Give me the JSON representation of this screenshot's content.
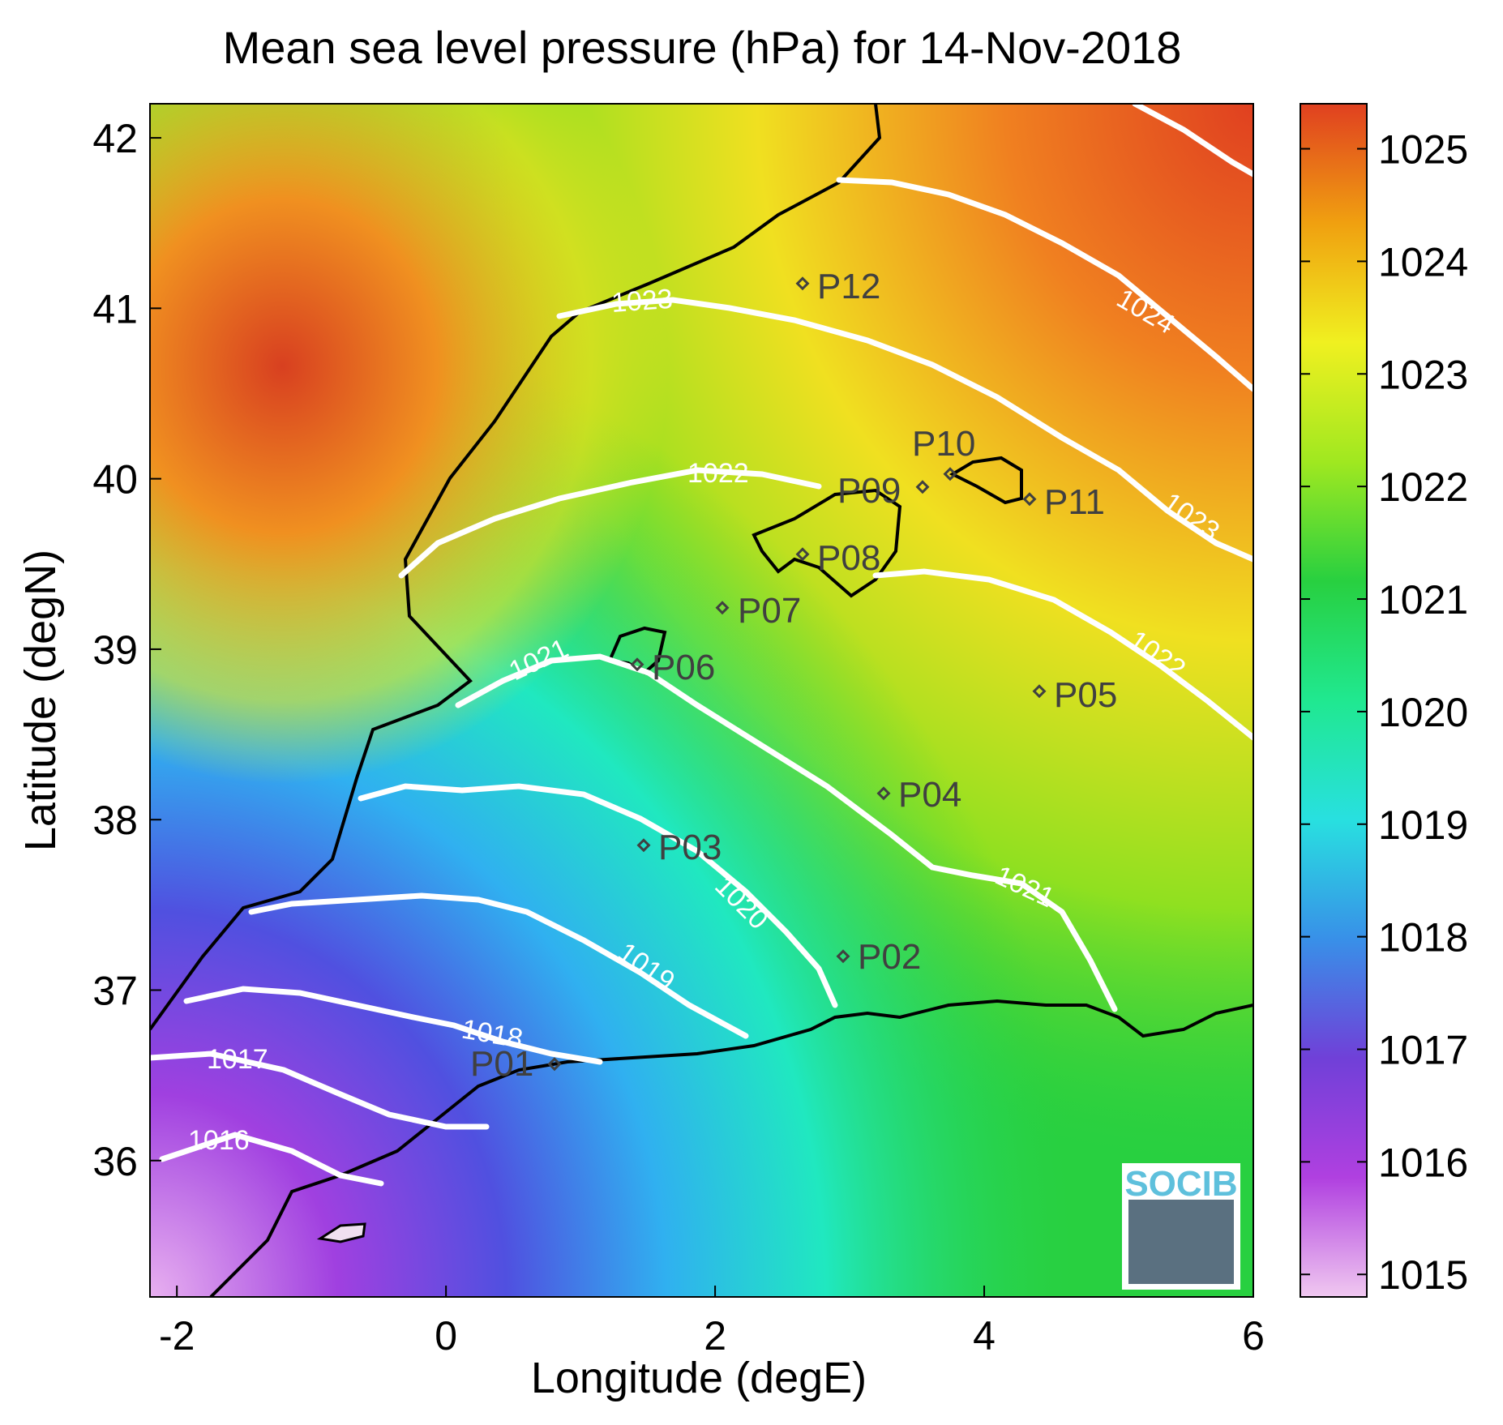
{
  "title": "Mean sea level pressure (hPa) for 14-Nov-2018",
  "xlabel": "Longitude (degE)",
  "ylabel": "Latitude (degN)",
  "x_ticks": [
    "-2",
    "0",
    "2",
    "4",
    "6"
  ],
  "y_ticks": [
    "36",
    "37",
    "38",
    "39",
    "40",
    "41",
    "42"
  ],
  "colorbar": {
    "ticks": [
      "1015",
      "1016",
      "1017",
      "1018",
      "1019",
      "1020",
      "1021",
      "1022",
      "1023",
      "1024",
      "1025"
    ],
    "stops": [
      "#f0c8f0",
      "#b040e0",
      "#7040d8",
      "#3890e8",
      "#28e0e0",
      "#20e890",
      "#28d040",
      "#a0e820",
      "#f0f020",
      "#f0a010",
      "#e04020"
    ]
  },
  "contour_labels": [
    "1016",
    "1017",
    "1018",
    "1019",
    "1020",
    "1021",
    "1021",
    "1022",
    "1022",
    "1023",
    "1023",
    "1024"
  ],
  "stations": [
    "P01",
    "P02",
    "P03",
    "P04",
    "P05",
    "P06",
    "P07",
    "P08",
    "P09",
    "P10",
    "P11",
    "P12"
  ],
  "logo": "SOCIB",
  "chart_data": {
    "type": "heatmap",
    "title": "Mean sea level pressure (hPa) for 14-Nov-2018",
    "xlabel": "Longitude (degE)",
    "ylabel": "Latitude (degN)",
    "xlim": [
      -2.2,
      6
    ],
    "ylim": [
      35.2,
      42.2
    ],
    "clim": [
      1014.8,
      1025.4
    ],
    "colorbar_label_values": [
      1015,
      1016,
      1017,
      1018,
      1019,
      1020,
      1021,
      1022,
      1023,
      1024,
      1025
    ],
    "stations": [
      {
        "name": "P01",
        "lon": 0.83,
        "lat": 36.5
      },
      {
        "name": "P02",
        "lon": 3.0,
        "lat": 37.15
      },
      {
        "name": "P03",
        "lon": 1.5,
        "lat": 37.8
      },
      {
        "name": "P04",
        "lon": 3.3,
        "lat": 38.1
      },
      {
        "name": "P05",
        "lon": 4.45,
        "lat": 38.7
      },
      {
        "name": "P06",
        "lon": 1.45,
        "lat": 38.85
      },
      {
        "name": "P07",
        "lon": 2.1,
        "lat": 39.2
      },
      {
        "name": "P08",
        "lon": 2.7,
        "lat": 39.5
      },
      {
        "name": "P09",
        "lon": 3.6,
        "lat": 39.9
      },
      {
        "name": "P10",
        "lon": 3.8,
        "lat": 40.0
      },
      {
        "name": "P11",
        "lon": 4.4,
        "lat": 39.85
      },
      {
        "name": "P12",
        "lon": 2.7,
        "lat": 41.1
      }
    ],
    "contour_levels": [
      1016,
      1017,
      1018,
      1019,
      1020,
      1021,
      1022,
      1023,
      1024
    ]
  }
}
